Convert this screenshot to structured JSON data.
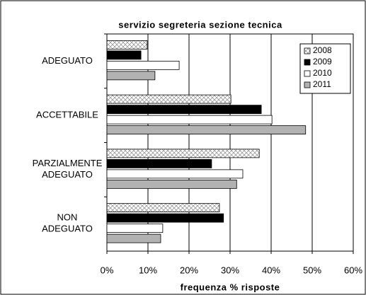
{
  "chart_data": {
    "type": "barh",
    "title": "servizio segreteria sezione tecnica",
    "xlabel": "frequenza % risposte",
    "categories": [
      "ADEGUATO",
      "ACCETTABILE",
      "PARZIALMENTE ADEGUATO",
      "NON ADEGUATO"
    ],
    "series": [
      {
        "name": "2008",
        "color": "#ffffff",
        "pattern": "crosshatch",
        "values": [
          9.8,
          30.2,
          37.1,
          27.4
        ]
      },
      {
        "name": "2009",
        "color": "#000000",
        "values": [
          8.3,
          37.6,
          25.5,
          28.4
        ]
      },
      {
        "name": "2010",
        "color": "#ffffff",
        "values": [
          17.6,
          40.2,
          33.1,
          13.6
        ]
      },
      {
        "name": "2011",
        "color": "#b2b2b2",
        "values": [
          11.7,
          48.4,
          31.6,
          13.1
        ]
      }
    ],
    "xlim": [
      0,
      60
    ],
    "xticks": [
      {
        "value": 0,
        "label": "0%"
      },
      {
        "value": 10,
        "label": "10%"
      },
      {
        "value": 20,
        "label": "20%"
      },
      {
        "value": 30,
        "label": "30%"
      },
      {
        "value": 40,
        "label": "40%"
      },
      {
        "value": 50,
        "label": "50%"
      },
      {
        "value": 60,
        "label": "60%"
      }
    ],
    "grid": true,
    "legend": "upper right"
  }
}
